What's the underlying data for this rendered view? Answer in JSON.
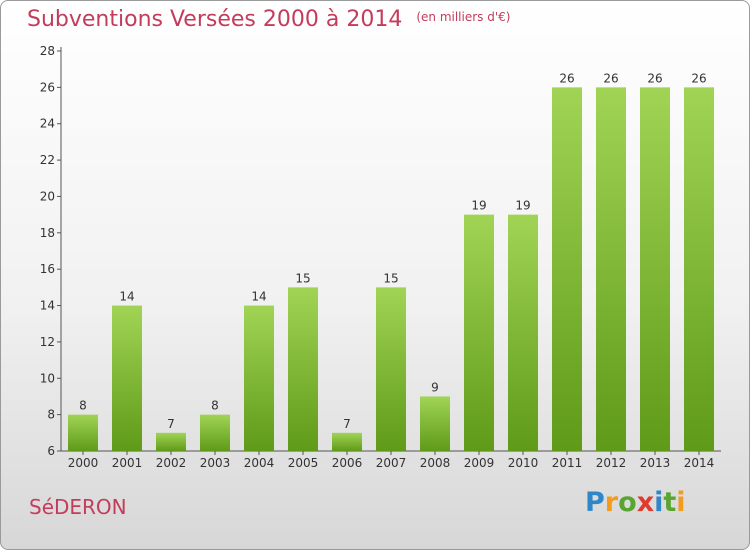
{
  "header": {
    "title": "Subventions Versées 2000 à 2014",
    "unit": "(en milliers d'€)"
  },
  "footer": {
    "town": "SéDERON",
    "logo": "Proxiti",
    "logo_colors": [
      "#2f86c8",
      "#f29b1d",
      "#5aa532",
      "#e03a2f",
      "#2f86c8",
      "#5aa532",
      "#f29b1d"
    ]
  },
  "chart_data": {
    "type": "bar",
    "categories": [
      "2000",
      "2001",
      "2002",
      "2003",
      "2004",
      "2005",
      "2006",
      "2007",
      "2008",
      "2009",
      "2010",
      "2011",
      "2012",
      "2013",
      "2014"
    ],
    "values": [
      8,
      14,
      7,
      8,
      14,
      15,
      7,
      15,
      9,
      19,
      19,
      26,
      26,
      26,
      26
    ],
    "ylim": [
      6,
      28
    ],
    "yticks": [
      6,
      8,
      10,
      12,
      14,
      16,
      18,
      20,
      22,
      24,
      26,
      28
    ],
    "bar_color_top": "#a1d455",
    "bar_color_bottom": "#5f9a18",
    "grid": false
  }
}
